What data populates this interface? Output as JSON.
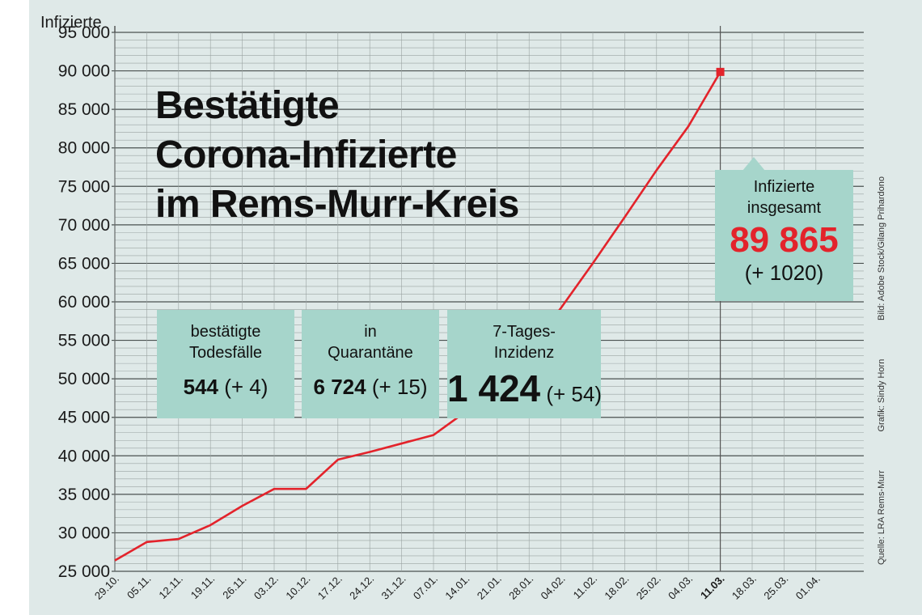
{
  "chart_data": {
    "type": "line",
    "title": "Bestätigte Corona-Infizierte im Rems-Murr-Kreis",
    "title_lines": [
      "Bestätigte",
      "Corona-Infizierte",
      "im Rems-Murr-Kreis"
    ],
    "ylabel": "Infizierte",
    "xlabel": "",
    "ylim": [
      25000,
      95000
    ],
    "y_ticks": [
      25000,
      30000,
      35000,
      40000,
      45000,
      50000,
      55000,
      60000,
      65000,
      70000,
      75000,
      80000,
      85000,
      90000,
      95000
    ],
    "y_tick_labels": [
      "25 000",
      "30 000",
      "35 000",
      "40 000",
      "45 000",
      "50 000",
      "55 000",
      "60 000",
      "65 000",
      "70 000",
      "75 000",
      "80 000",
      "85 000",
      "90 000",
      "95 000"
    ],
    "x_tick_labels": [
      "29.10.",
      "05.11.",
      "12.11.",
      "19.11.",
      "26.11.",
      "03.12.",
      "10.12.",
      "17.12.",
      "24.12.",
      "31.12.",
      "07.01.",
      "14.01.",
      "21.01.",
      "28.01.",
      "04.02.",
      "11.02.",
      "18.02.",
      "25.02.",
      "04.03.",
      "11.03.",
      "18.03.",
      "25.03.",
      "01.04."
    ],
    "x_highlight": "11.03.",
    "grid": true,
    "line_color": "#e3232b",
    "series": [
      {
        "x": [
          "29.10.",
          "05.11.",
          "12.11.",
          "19.11.",
          "26.11.",
          "03.12.",
          "10.12.",
          "17.12.",
          "24.12.",
          "31.12.",
          "07.01.",
          "14.01.",
          "21.01.",
          "28.01.",
          "04.02.",
          "11.02.",
          "18.02.",
          "25.02.",
          "04.03.",
          "11.03."
        ],
        "values": [
          26400,
          28800,
          29200,
          31000,
          33500,
          35700,
          35700,
          39500,
          40500,
          41600,
          42700,
          45700,
          49000,
          53800,
          59200,
          65000,
          71000,
          77100,
          82800,
          89865
        ]
      }
    ]
  },
  "boxes": {
    "deaths": {
      "label_1": "bestätigte",
      "label_2": "Todesfälle",
      "value": "544",
      "change": "(+ 4)"
    },
    "quarantine": {
      "label_1": "in",
      "label_2": "Quarantäne",
      "value": "6 724",
      "change": "(+ 15)"
    },
    "incidence": {
      "label_1": "7-Tages-",
      "label_2": "Inzidenz",
      "value": "1 424",
      "change": "(+ 54)"
    },
    "total": {
      "label_1": "Infizierte",
      "label_2": "insgesamt",
      "value": "89 865",
      "change": "(+ 1020)"
    }
  },
  "credits": {
    "source": "Quelle: LRA Rems-Murr",
    "graphic": "Grafik: Sindy Horn",
    "image": "Bild: Adobe Stock/Gilang Prihardono"
  },
  "colors": {
    "background": "#dfe9e8",
    "box": "#a6d5cb",
    "accent": "#e3232b",
    "grid": "#9aa3a2"
  }
}
